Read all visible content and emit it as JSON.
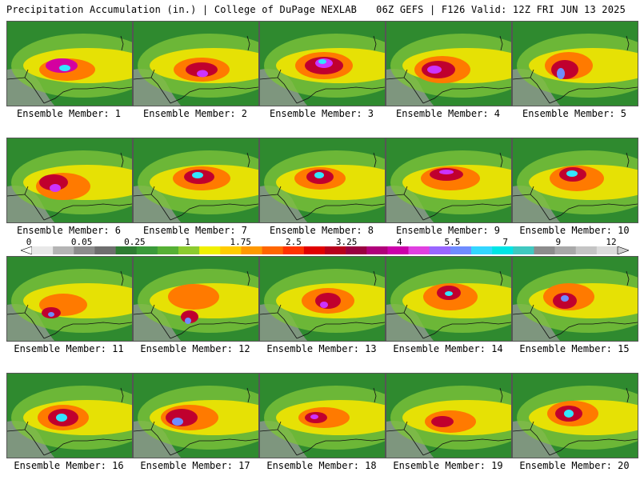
{
  "header": {
    "title_left": "Precipitation Accumulation (in.) | College of DuPage NEXLAB",
    "title_right": "06Z GEFS | F126 Valid: 12Z FRI JUN 13 2025"
  },
  "colorbar": {
    "labels": [
      "0",
      "0.05",
      "0.25",
      "1",
      "1.75",
      "2.5",
      "3.25",
      "4",
      "5.5",
      "7",
      "9",
      "12"
    ],
    "colors": [
      "#e8e8e8",
      "#b4b4b4",
      "#8c8c8c",
      "#6e6e6e",
      "#2e7d32",
      "#3a9a3a",
      "#56b035",
      "#8ccb2f",
      "#f0f000",
      "#ffcc00",
      "#ff9900",
      "#ff6600",
      "#ff3300",
      "#e00000",
      "#b8001c",
      "#9a0040",
      "#b0007a",
      "#cc00aa",
      "#e040e0",
      "#9966ff",
      "#6f8cff",
      "#33d6ff",
      "#00e5e5",
      "#40c8c0",
      "#8c8c8c",
      "#a8a8a8",
      "#c4c4c4",
      "#dcdcdc"
    ]
  },
  "member_label_prefix": "Ensemble Member:",
  "members": [
    {
      "label": "Ensemble Member: 1",
      "blobs": [
        [
          75,
          60,
          70,
          28,
          3
        ],
        [
          68,
          55,
          40,
          18,
          6
        ],
        [
          72,
          58,
          14,
          8,
          9
        ]
      ]
    },
    {
      "label": "Ensemble Member: 2",
      "blobs": [
        [
          85,
          60,
          70,
          30,
          3
        ],
        [
          85,
          60,
          40,
          18,
          5
        ],
        [
          86,
          65,
          14,
          9,
          7
        ]
      ]
    },
    {
      "label": "Ensemble Member: 3",
      "blobs": [
        [
          80,
          55,
          72,
          34,
          3
        ],
        [
          80,
          55,
          48,
          22,
          5
        ],
        [
          80,
          52,
          22,
          12,
          7
        ],
        [
          78,
          50,
          10,
          6,
          9
        ]
      ]
    },
    {
      "label": "Ensemble Member: 4",
      "blobs": [
        [
          70,
          60,
          70,
          34,
          3
        ],
        [
          65,
          60,
          42,
          22,
          5
        ],
        [
          60,
          60,
          18,
          10,
          7
        ]
      ]
    },
    {
      "label": "Ensemble Member: 5",
      "blobs": [
        [
          70,
          55,
          60,
          34,
          3
        ],
        [
          65,
          60,
          34,
          24,
          5
        ],
        [
          60,
          65,
          10,
          14,
          8
        ]
      ]
    },
    {
      "label": "Ensemble Member: 6",
      "blobs": [
        [
          70,
          60,
          68,
          34,
          3
        ],
        [
          58,
          55,
          36,
          20,
          5
        ],
        [
          60,
          62,
          14,
          10,
          7
        ]
      ]
    },
    {
      "label": "Ensemble Member: 7",
      "blobs": [
        [
          85,
          50,
          72,
          30,
          3
        ],
        [
          82,
          48,
          38,
          18,
          5
        ],
        [
          80,
          46,
          14,
          8,
          9
        ]
      ]
    },
    {
      "label": "Ensemble Member: 8",
      "blobs": [
        [
          75,
          50,
          64,
          28,
          3
        ],
        [
          75,
          48,
          34,
          18,
          5
        ],
        [
          74,
          46,
          12,
          8,
          9
        ]
      ]
    },
    {
      "label": "Ensemble Member: 9",
      "blobs": [
        [
          80,
          50,
          74,
          30,
          3
        ],
        [
          75,
          45,
          42,
          16,
          5
        ],
        [
          75,
          42,
          18,
          6,
          7
        ]
      ]
    },
    {
      "label": "Ensemble Member: 10",
      "blobs": [
        [
          80,
          50,
          68,
          32,
          3
        ],
        [
          75,
          45,
          34,
          18,
          5
        ],
        [
          74,
          44,
          14,
          8,
          9
        ]
      ]
    },
    {
      "label": "Ensemble Member: 11",
      "blobs": [
        [
          70,
          60,
          60,
          28,
          3
        ],
        [
          55,
          70,
          24,
          14,
          5
        ],
        [
          55,
          72,
          8,
          6,
          8
        ]
      ]
    },
    {
      "label": "Ensemble Member: 12",
      "blobs": [
        [
          75,
          50,
          64,
          32,
          3
        ],
        [
          70,
          75,
          22,
          16,
          5
        ],
        [
          68,
          80,
          8,
          8,
          8
        ]
      ]
    },
    {
      "label": "Ensemble Member: 13",
      "blobs": [
        [
          85,
          55,
          66,
          32,
          3
        ],
        [
          85,
          55,
          32,
          20,
          5
        ],
        [
          80,
          60,
          10,
          8,
          7
        ]
      ]
    },
    {
      "label": "Ensemble Member: 14",
      "blobs": [
        [
          80,
          50,
          68,
          34,
          3
        ],
        [
          78,
          45,
          30,
          18,
          5
        ],
        [
          78,
          46,
          10,
          6,
          9
        ]
      ]
    },
    {
      "label": "Ensemble Member: 15",
      "blobs": [
        [
          70,
          50,
          64,
          34,
          3
        ],
        [
          65,
          55,
          30,
          20,
          5
        ],
        [
          65,
          52,
          10,
          8,
          8
        ]
      ]
    },
    {
      "label": "Ensemble Member: 16",
      "blobs": [
        [
          70,
          55,
          64,
          32,
          3
        ],
        [
          70,
          55,
          38,
          22,
          5
        ],
        [
          68,
          55,
          14,
          10,
          9
        ]
      ]
    },
    {
      "label": "Ensemble Member: 17",
      "blobs": [
        [
          70,
          55,
          72,
          32,
          3
        ],
        [
          60,
          55,
          40,
          22,
          5
        ],
        [
          55,
          60,
          14,
          10,
          8
        ]
      ]
    },
    {
      "label": "Ensemble Member: 18",
      "blobs": [
        [
          80,
          55,
          64,
          26,
          3
        ],
        [
          70,
          55,
          28,
          14,
          5
        ],
        [
          68,
          54,
          10,
          6,
          7
        ]
      ]
    },
    {
      "label": "Ensemble Member: 19",
      "blobs": [
        [
          80,
          60,
          64,
          28,
          3
        ],
        [
          70,
          60,
          28,
          14,
          5
        ]
      ]
    },
    {
      "label": "Ensemble Member: 20",
      "blobs": [
        [
          75,
          50,
          64,
          32,
          3
        ],
        [
          70,
          50,
          34,
          20,
          5
        ],
        [
          70,
          50,
          12,
          10,
          9
        ]
      ]
    }
  ]
}
